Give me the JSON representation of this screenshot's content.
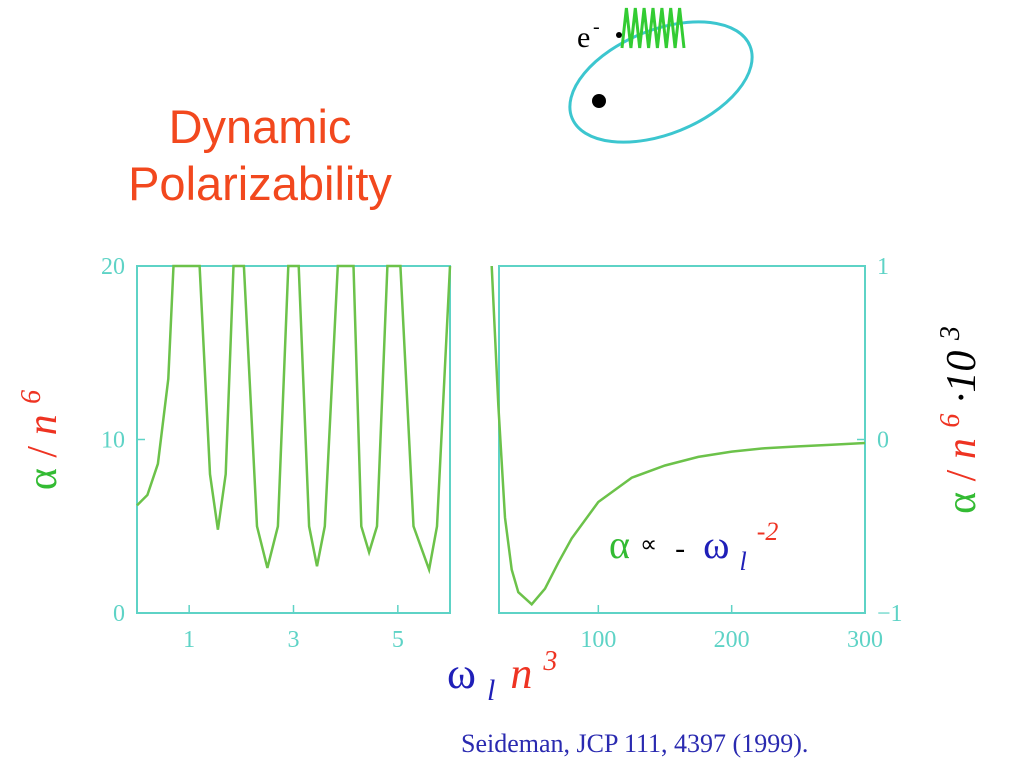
{
  "colors": {
    "title": "#f2481e",
    "axis": "#5ed3c6",
    "curve": "#6cc24a",
    "alpha_green": "#33bb33",
    "omega_blue": "#1f1fb8",
    "n_red": "#ee3322",
    "citation": "#2a2ab0",
    "ellipse": "#3cc6cf",
    "spring": "#33cc33"
  },
  "title": {
    "line1": "Dynamic",
    "line2": "Polarizability"
  },
  "illustration": {
    "electron_label": "e",
    "electron_sup": "-"
  },
  "annotation": {
    "alpha": "α",
    "proportional": "∝",
    "minus": "-",
    "omega": "ω",
    "sub": "l",
    "sup": "-2"
  },
  "left_ylabel": {
    "alpha": "α",
    "slash": "/",
    "n": "n",
    "exp": "6"
  },
  "right_ylabel": {
    "alpha": "α",
    "slash": "/",
    "n": "n",
    "exp": "6",
    "mult": "·10",
    "exp2": "3"
  },
  "xlabel": {
    "omega": "ω",
    "sub": "l",
    "n": "n",
    "exp": "3"
  },
  "citation": "Seideman, JCP 111, 4397 (1999).",
  "chart_data": [
    {
      "type": "line",
      "panel": "left",
      "xlim": [
        0,
        6
      ],
      "ylim": [
        0,
        20
      ],
      "x_ticks": [
        1,
        3,
        5
      ],
      "y_ticks": [
        0,
        10,
        20
      ],
      "series": [
        {
          "resonances": [
            0.7,
            1.2,
            1.85,
            2.05,
            2.9,
            3.1,
            3.85,
            4.15,
            4.8,
            5.05,
            5.8,
            6.0
          ],
          "x": [
            0.0,
            0.2,
            0.4,
            0.6,
            0.7,
            1.2,
            1.4,
            1.55,
            1.7,
            1.85,
            2.05,
            2.3,
            2.5,
            2.7,
            2.9,
            3.1,
            3.3,
            3.45,
            3.6,
            3.85,
            4.15,
            4.3,
            4.45,
            4.6,
            4.8,
            5.05,
            5.3,
            5.6,
            5.75,
            6.0
          ],
          "y": [
            6.2,
            6.8,
            8.6,
            13.5,
            20,
            20,
            8.0,
            4.8,
            8.0,
            20,
            20,
            5.0,
            2.6,
            5.0,
            20,
            20,
            5.0,
            2.7,
            5.0,
            20,
            20,
            5.0,
            3.5,
            5.0,
            20,
            20,
            5.0,
            2.5,
            5.0,
            20
          ]
        }
      ]
    },
    {
      "type": "line",
      "panel": "right",
      "xlim": [
        0,
        300
      ],
      "ylim": [
        -1,
        1
      ],
      "x_ticks": [
        100,
        200
      ],
      "x_tick_labels_extra": [
        300
      ],
      "y_ticks": [
        -1,
        0,
        1
      ],
      "y_tick_labels": [
        "−1",
        "0",
        "1"
      ],
      "series": [
        {
          "x": [
            20,
            25,
            30,
            35,
            40,
            50,
            60,
            70,
            80,
            100,
            125,
            150,
            175,
            200,
            225,
            250,
            275,
            300
          ],
          "y": [
            1.0,
            0.2,
            -0.45,
            -0.75,
            -0.88,
            -0.95,
            -0.86,
            -0.71,
            -0.57,
            -0.36,
            -0.22,
            -0.15,
            -0.1,
            -0.07,
            -0.05,
            -0.04,
            -0.03,
            -0.02
          ]
        }
      ]
    }
  ]
}
